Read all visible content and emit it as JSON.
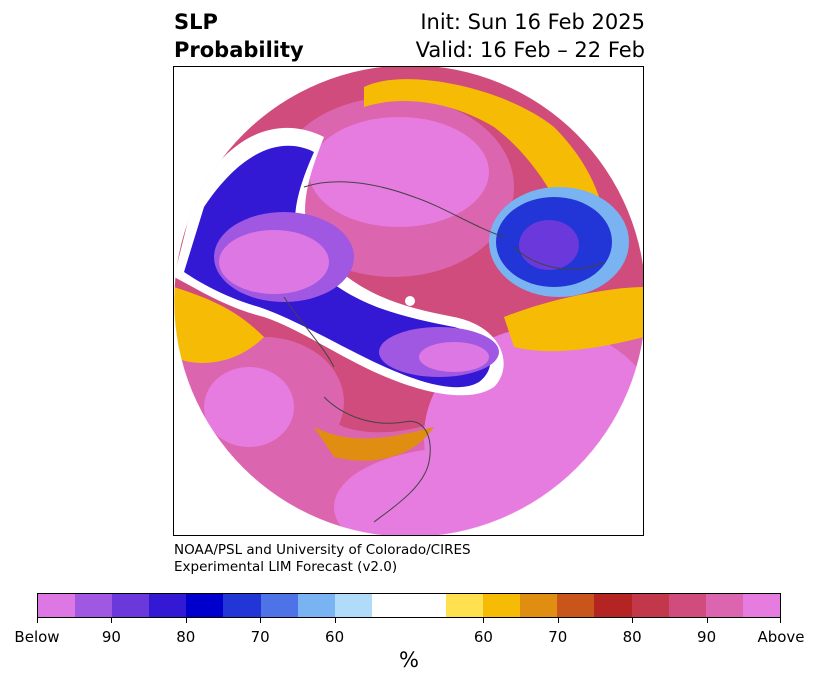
{
  "header": {
    "title_line1": "SLP",
    "title_line2": "Probability",
    "init_text": "Init: Sun 16 Feb 2025",
    "valid_text": "Valid: 16 Feb – 22 Feb"
  },
  "map": {
    "projection": "polar stereographic (North Pole)",
    "field": "SLP probability"
  },
  "credit": {
    "line1": "NOAA/PSL and University of Colorado/CIRES",
    "line2": "Experimental LIM Forecast (v2.0)"
  },
  "colorbar": {
    "colors": [
      "#dd77e4",
      "#a057e2",
      "#6a38db",
      "#3318d4",
      "#0000cc",
      "#2235d6",
      "#4d73e6",
      "#7ab3f1",
      "#b0dcfa",
      "#ffffff",
      "#ffe14f",
      "#f6bc05",
      "#e08e12",
      "#c9551b",
      "#b32423",
      "#c3374a",
      "#d04c7c",
      "#db65ae",
      "#e67be0"
    ],
    "tick_labels": [
      "Below",
      "90",
      "80",
      "70",
      "60",
      "60",
      "70",
      "80",
      "90",
      "Above"
    ],
    "unit": "%"
  }
}
